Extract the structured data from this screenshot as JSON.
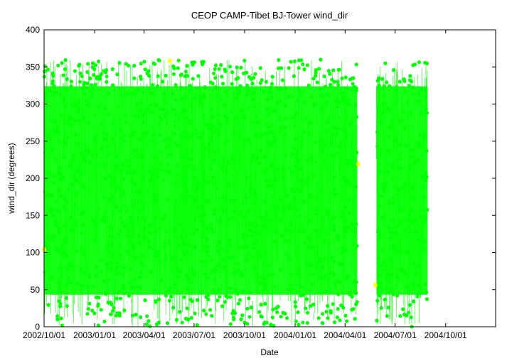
{
  "chart_data": {
    "type": "scatter",
    "title": "CEOP CAMP-Tibet BJ-Tower  wind_dir",
    "xlabel": "Date",
    "ylabel": "wind_dir (degrees)",
    "xlim": [
      "2002-10-01",
      "2004-12-31"
    ],
    "ylim": [
      0,
      400
    ],
    "y_ticks": [
      0,
      50,
      100,
      150,
      200,
      250,
      300,
      350,
      400
    ],
    "x_ticks": [
      {
        "date": "2002-10-01",
        "label": "2002/10/01"
      },
      {
        "date": "2003-01-01",
        "label": "2003/01/01"
      },
      {
        "date": "2003-04-01",
        "label": "2003/04/01"
      },
      {
        "date": "2003-07-01",
        "label": "2003/07/01"
      },
      {
        "date": "2003-10-01",
        "label": "2003/10/01"
      },
      {
        "date": "2004-01-01",
        "label": "2004/01/01"
      },
      {
        "date": "2004-04-01",
        "label": "2004/04/01"
      },
      {
        "date": "2004-07-01",
        "label": "2004/07/01"
      },
      {
        "date": "2004-10-01",
        "label": "2004/10/01"
      }
    ],
    "grid": false,
    "series": [
      {
        "color": "#00ff00",
        "segments": [
          {
            "start": "2002-10-01",
            "end": "2004-04-23",
            "min": 0,
            "max": 360
          },
          {
            "start": "2004-05-28",
            "end": "2004-08-29",
            "min": 0,
            "max": 360
          }
        ]
      },
      {
        "color": "#ffff00",
        "points": [
          {
            "x": "2002-10-01",
            "y": 104
          },
          {
            "x": "2003-05-18",
            "y": 358
          },
          {
            "x": "2004-04-25",
            "y": 219
          },
          {
            "x": "2004-05-26",
            "y": 56
          }
        ]
      }
    ]
  }
}
